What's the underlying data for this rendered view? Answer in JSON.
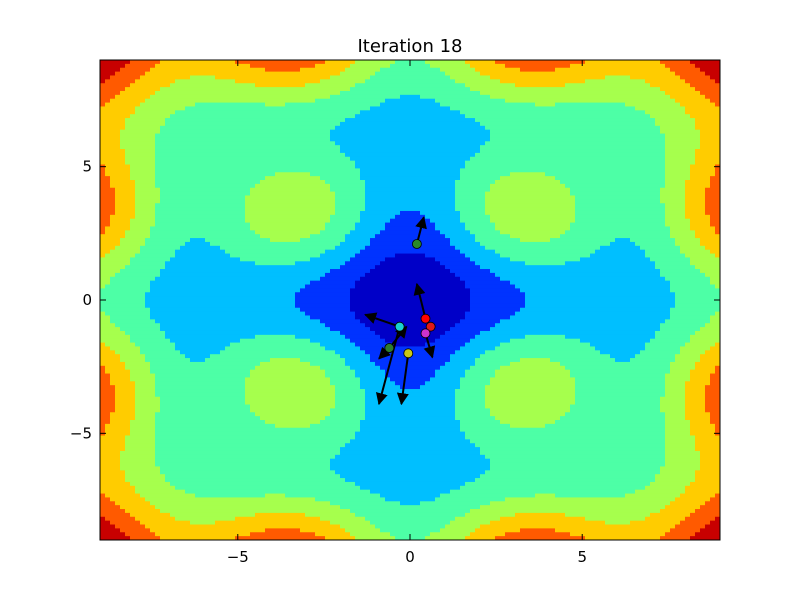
{
  "chart_data": {
    "type": "contour",
    "title": "Iteration 18",
    "xlabel": "",
    "ylabel": "",
    "xlim": [
      -9,
      9
    ],
    "ylim": [
      -9,
      9
    ],
    "xticks": [
      -5,
      0,
      5
    ],
    "yticks": [
      -5,
      0,
      5
    ],
    "grid": false,
    "colormap": "jet",
    "level_colors": [
      "#0000c8",
      "#0033ff",
      "#00bfff",
      "#4dffa6",
      "#a6ff4d",
      "#ffcc00",
      "#ff5a00",
      "#c80000"
    ],
    "surface": "sum of cos/sin terms producing 4-fold symmetric basins (approx.)",
    "particles": [
      {
        "x": 0.2,
        "y": 2.1,
        "vx": 0.2,
        "vy": 1.0,
        "color": "#2a8a2a"
      },
      {
        "x": -0.3,
        "y": -1.0,
        "vx": -1.0,
        "vy": 0.45,
        "color": "#19d1d1"
      },
      {
        "x": -0.6,
        "y": -1.8,
        "vx": 0.5,
        "vy": 0.8,
        "color": "#2e7d2e"
      },
      {
        "x": -0.6,
        "y": -1.8,
        "vx": -0.3,
        "vy": -0.4,
        "color": "#2e7d2e"
      },
      {
        "x": -0.3,
        "y": -1.0,
        "vx": -0.6,
        "vy": -2.9,
        "color": "#19d1d1"
      },
      {
        "x": -0.05,
        "y": -2.0,
        "vx": -0.2,
        "vy": -1.9,
        "color": "#c8c814"
      },
      {
        "x": 0.45,
        "y": -0.7,
        "vx": -0.25,
        "vy": 1.3,
        "color": "#ff0000"
      },
      {
        "x": 0.6,
        "y": -1.0,
        "vx": 0.0,
        "vy": 0.0,
        "color": "#e01919"
      },
      {
        "x": 0.45,
        "y": -1.25,
        "vx": 0.2,
        "vy": -0.9,
        "color": "#cc33cc"
      }
    ]
  }
}
